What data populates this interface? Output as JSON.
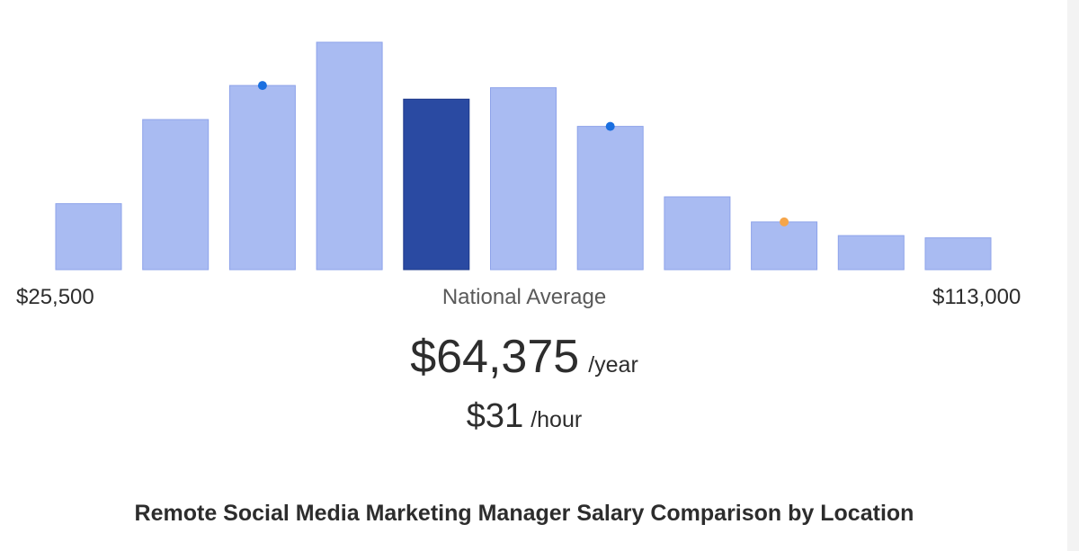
{
  "chart_data": {
    "type": "bar",
    "values": [
      14.5,
      33.0,
      40.5,
      50.0,
      37.5,
      40.0,
      31.5,
      16.0,
      10.5,
      7.5,
      7.0
    ],
    "highlight_index": 4,
    "markers": [
      {
        "bar_index": 2,
        "value": 40.5,
        "color": "#1a6fe0"
      },
      {
        "bar_index": 6,
        "value": 31.5,
        "color": "#1a6fe0"
      },
      {
        "bar_index": 8,
        "value": 10.5,
        "color": "#f5a54a"
      }
    ],
    "x_range_labels": {
      "min": "$25,500",
      "max": "$113,000"
    },
    "center_caption": "National Average",
    "ylim": [
      0,
      50
    ],
    "colors": {
      "bar": "#a9bbf2",
      "bar_border": "#8ea3ea",
      "highlight": "#2a4aa2",
      "highlight_border": "#1e3a8a"
    }
  },
  "salary": {
    "yearly_value": "$64,375",
    "yearly_unit": "/year",
    "hourly_value": "$31",
    "hourly_unit": "/hour"
  },
  "section": {
    "heading": "Remote Social Media Marketing Manager Salary Comparison by Location"
  }
}
